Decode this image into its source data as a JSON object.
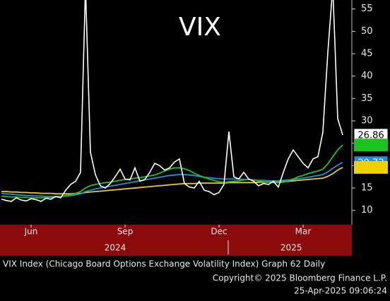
{
  "chart_data": {
    "type": "line",
    "title": "VIX",
    "footer": [
      "VIX Index (Chicago Board Options Exchange Volatility Index) Graph 62  Daily",
      "Copyright© 2025 Bloomberg Finance L.P.",
      "25-Apr-2025 09:06:24"
    ],
    "categories": [
      null,
      null,
      null,
      null,
      null,
      null,
      "Jun",
      null,
      null,
      null,
      null,
      null,
      null,
      null,
      null,
      null,
      null,
      null,
      null,
      null,
      null,
      null,
      null,
      null,
      null,
      "Sep",
      null,
      null,
      null,
      null,
      null,
      null,
      null,
      null,
      null,
      null,
      null,
      null,
      null,
      null,
      null,
      null,
      null,
      null,
      "Dec",
      null,
      null,
      null,
      null,
      null,
      null,
      null,
      null,
      null,
      null,
      null,
      null,
      null,
      null,
      null,
      null,
      "Mar",
      null,
      null,
      null,
      null,
      null,
      null,
      null,
      null
    ],
    "x_group_labels": [
      {
        "value": 23,
        "label": "2024"
      },
      {
        "value": 58.6,
        "label": "2025"
      }
    ],
    "ylim": [
      6.8,
      57
    ],
    "yticks": [
      10,
      15,
      20,
      25,
      30,
      35,
      40,
      45,
      50,
      55
    ],
    "axis_side": "right",
    "series": [
      {
        "color": "#ffffff",
        "values": [
          12.5,
          12.2,
          12.0,
          12.8,
          12.3,
          12.1,
          12.6,
          12.4,
          12.0,
          12.7,
          12.5,
          13.1,
          12.8,
          14.5,
          15.8,
          16.5,
          18.5,
          60,
          23,
          18,
          15.5,
          15.0,
          16,
          17.5,
          19.2,
          17,
          16.8,
          19.5,
          16.5,
          16.9,
          18.5,
          20.5,
          20.0,
          19.0,
          19.5,
          20.8,
          21.5,
          16,
          15.2,
          15.0,
          16.5,
          14.5,
          14.2,
          13.5,
          14.0,
          15.8,
          27.6,
          17.5,
          17.0,
          18.5,
          17.0,
          16.5,
          15.5,
          16.0,
          15.8,
          16.5,
          15.2,
          18.5,
          21.5,
          23.5,
          22.0,
          20.5,
          19.5,
          21.5,
          22.0,
          27.5,
          45.3,
          60,
          30.5,
          26.86
        ]
      },
      {
        "color": "#1ec41e",
        "values": [
          13.2,
          13.1,
          13.0,
          13.0,
          12.9,
          12.9,
          12.8,
          12.8,
          12.8,
          12.9,
          12.9,
          13.0,
          13.1,
          13.3,
          13.5,
          13.8,
          14.2,
          15.0,
          15.5,
          15.8,
          16.0,
          16.2,
          16.3,
          16.5,
          16.7,
          16.9,
          17.0,
          17.2,
          17.3,
          17.5,
          17.7,
          17.9,
          18.3,
          18.8,
          19.2,
          19.5,
          19.5,
          19.3,
          18.9,
          18.3,
          17.8,
          17.4,
          17.0,
          16.7,
          16.4,
          16.2,
          16.4,
          16.5,
          16.6,
          16.8,
          16.9,
          16.8,
          16.6,
          16.4,
          16.3,
          16.2,
          16.2,
          16.3,
          16.6,
          17.0,
          17.5,
          17.8,
          18.2,
          18.5,
          18.8,
          19.2,
          20.4,
          22.0,
          23.5,
          24.6
        ]
      },
      {
        "color": "#1e90e0",
        "values": [
          13.8,
          13.7,
          13.6,
          13.5,
          13.4,
          13.3,
          13.3,
          13.2,
          13.2,
          13.1,
          13.1,
          13.1,
          13.1,
          13.2,
          13.3,
          13.5,
          13.7,
          14.2,
          14.5,
          14.8,
          15.0,
          15.2,
          15.4,
          15.6,
          15.8,
          16.0,
          16.2,
          16.4,
          16.6,
          16.8,
          17.0,
          17.2,
          17.4,
          17.6,
          17.8,
          17.9,
          18.0,
          18.0,
          17.9,
          17.8,
          17.6,
          17.4,
          17.3,
          17.2,
          17.1,
          17.0,
          17.0,
          17.0,
          17.0,
          16.9,
          16.9,
          16.8,
          16.7,
          16.7,
          16.6,
          16.6,
          16.6,
          16.7,
          16.8,
          16.9,
          17.1,
          17.2,
          17.4,
          17.6,
          17.8,
          18.0,
          18.6,
          19.4,
          20.1,
          20.73
        ]
      },
      {
        "color": "#f0d000",
        "values": [
          14.2,
          14.2,
          14.1,
          14.1,
          14.0,
          14.0,
          13.9,
          13.9,
          13.8,
          13.8,
          13.8,
          13.7,
          13.7,
          13.7,
          13.7,
          13.8,
          13.8,
          14.0,
          14.1,
          14.2,
          14.3,
          14.4,
          14.5,
          14.6,
          14.7,
          14.8,
          14.9,
          15.0,
          15.1,
          15.2,
          15.3,
          15.4,
          15.5,
          15.6,
          15.7,
          15.8,
          15.9,
          16.0,
          16.0,
          16.0,
          16.1,
          16.1,
          16.1,
          16.1,
          16.1,
          16.1,
          16.2,
          16.2,
          16.2,
          16.2,
          16.2,
          16.2,
          16.3,
          16.3,
          16.3,
          16.3,
          16.3,
          16.4,
          16.5,
          16.6,
          16.7,
          16.8,
          16.9,
          17.0,
          17.1,
          17.2,
          17.6,
          18.2,
          19.0,
          19.6
        ]
      }
    ],
    "last_value_boxes": [
      0,
      2
    ]
  }
}
